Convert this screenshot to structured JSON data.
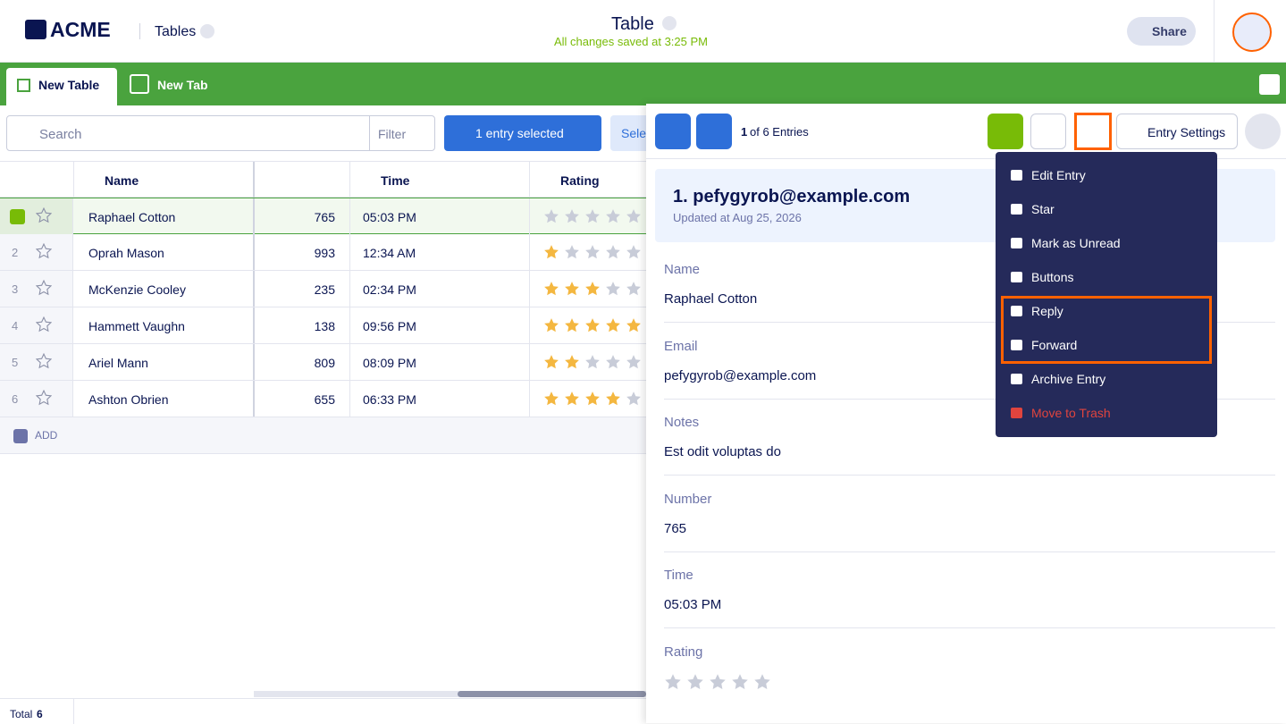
{
  "header": {
    "logo": "ACME",
    "app": "Tables",
    "title": "Table",
    "saved": "All changes saved at 3:25 PM",
    "share": "Share"
  },
  "tabs": [
    "New Table",
    "New Tab"
  ],
  "toolbar": {
    "search": "Search",
    "filter": "Filter",
    "selected": "1 entry selected",
    "select": "Sele"
  },
  "table": {
    "columns": [
      "Name",
      "Time",
      "Rating"
    ],
    "rows": [
      {
        "name": "Raphael Cotton",
        "number": 765,
        "time": "05:03 PM",
        "rating": 0
      },
      {
        "index": 2,
        "name": "Oprah Mason",
        "number": 993,
        "time": "12:34 AM",
        "rating": 1
      },
      {
        "index": 3,
        "name": "McKenzie Cooley",
        "number": 235,
        "time": "02:34 PM",
        "rating": 3
      },
      {
        "index": 4,
        "name": "Hammett Vaughn",
        "number": 138,
        "time": "09:56 PM",
        "rating": 5
      },
      {
        "index": 5,
        "name": "Ariel Mann",
        "number": 809,
        "time": "08:09 PM",
        "rating": 2
      },
      {
        "index": 6,
        "name": "Ashton Obrien",
        "number": 655,
        "time": "06:33 PM",
        "rating": 4
      }
    ],
    "add": "ADD"
  },
  "footer": {
    "label": "Total",
    "count": 6
  },
  "panel": {
    "position": 1,
    "of": "of 6 Entries",
    "settings": "Entry Settings",
    "entry_title": "1. pefygyrob@example.com",
    "updated": "Updated at Aug 25, 2026",
    "fields": [
      {
        "label": "Name",
        "value": "Raphael Cotton"
      },
      {
        "label": "Email",
        "value": "pefygyrob@example.com"
      },
      {
        "label": "Notes",
        "value": "Est odit voluptas do"
      },
      {
        "label": "Number",
        "value": 765
      },
      {
        "label": "Time",
        "value": "05:03 PM"
      },
      {
        "label": "Rating",
        "value": 0
      }
    ]
  },
  "menu": [
    "Edit Entry",
    "Star",
    "Mark as Unread",
    "Buttons",
    "Reply",
    "Forward",
    "Archive Entry",
    "Move to Trash"
  ]
}
